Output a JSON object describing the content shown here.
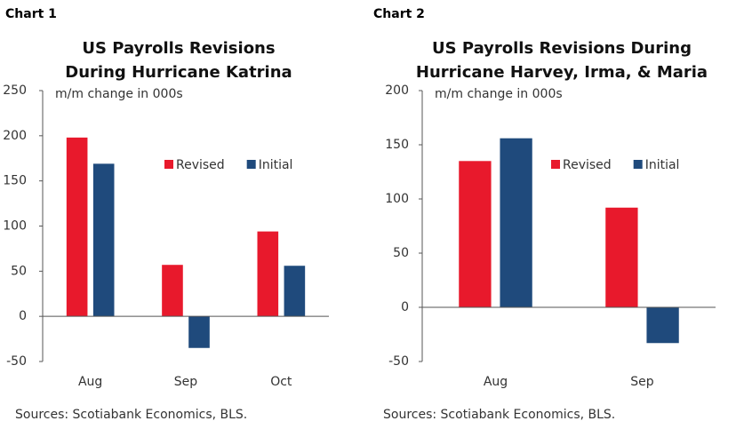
{
  "chart_data": [
    {
      "type": "bar",
      "label": "Chart 1",
      "title": [
        "US Payrolls Revisions",
        "During Hurricane Katrina"
      ],
      "ylabel": "m/m change in 000s",
      "categories": [
        "Aug",
        "Sep",
        "Oct"
      ],
      "series": [
        {
          "name": "Revised",
          "color": "#e8192c",
          "values": [
            198,
            57,
            94
          ]
        },
        {
          "name": "Initial",
          "color": "#1f4a7c",
          "values": [
            169,
            -35,
            56
          ]
        }
      ],
      "ylim": [
        -50,
        250
      ],
      "yticks": [
        -50,
        0,
        50,
        100,
        150,
        200,
        250
      ],
      "legend": "upper right",
      "source": "Sources: Scotiabank Economics, BLS."
    },
    {
      "type": "bar",
      "label": "Chart 2",
      "title": [
        "US Payrolls Revisions During",
        "Hurricane Harvey, Irma, & Maria"
      ],
      "ylabel": "m/m change in 000s",
      "categories": [
        "Aug",
        "Sep"
      ],
      "series": [
        {
          "name": "Revised",
          "color": "#e8192c",
          "values": [
            135,
            92
          ]
        },
        {
          "name": "Initial",
          "color": "#1f4a7c",
          "values": [
            156,
            -33
          ]
        }
      ],
      "ylim": [
        -50,
        200
      ],
      "yticks": [
        -50,
        0,
        50,
        100,
        150,
        200
      ],
      "legend": "upper right",
      "source": "Sources: Scotiabank Economics, BLS."
    }
  ]
}
